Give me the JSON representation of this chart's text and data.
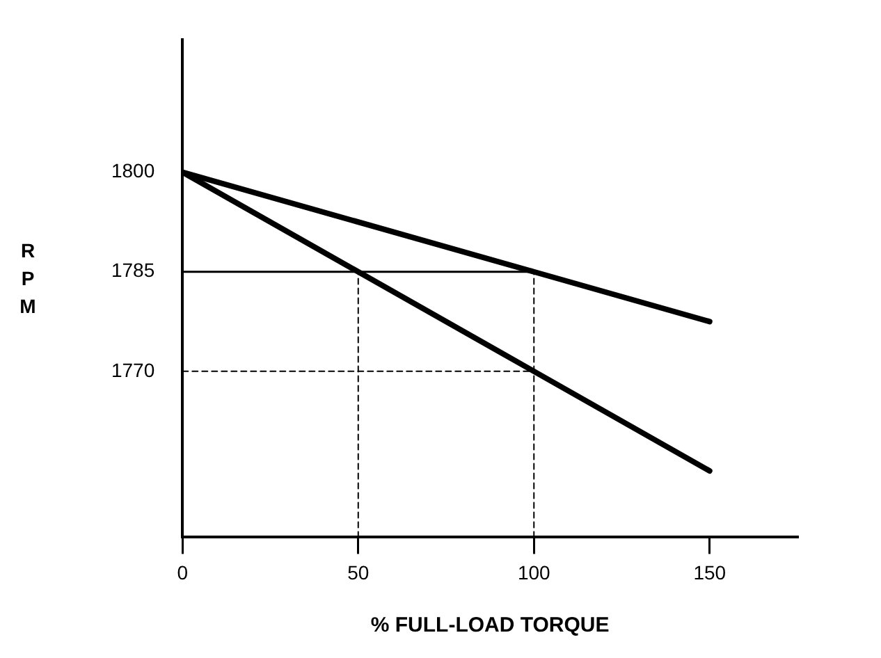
{
  "chart_data": {
    "type": "line",
    "xlabel": "% FULL-LOAD TORQUE",
    "ylabel": "RPM",
    "series": [
      {
        "color": "#000000",
        "x": [
          0,
          100,
          150
        ],
        "values": [
          1800,
          1785,
          1777.5
        ]
      },
      {
        "color": "#000000",
        "x": [
          0,
          50,
          100,
          150
        ],
        "values": [
          1800,
          1785,
          1770,
          1755
        ]
      },
      {
        "color": "#000000",
        "x": [
          0,
          100
        ],
        "values": [
          1785,
          1785
        ],
        "line_style": "solid"
      },
      {
        "color": "#000000",
        "x": [
          0,
          100
        ],
        "values": [
          1770,
          1770
        ],
        "line_style": "dashed"
      },
      {
        "color": "#000000",
        "x": [
          50,
          50
        ],
        "values": [
          1745,
          1785
        ],
        "line_style": "dashed"
      },
      {
        "color": "#000000",
        "x": [
          100,
          100
        ],
        "values": [
          1745,
          1785
        ],
        "line_style": "dashed"
      }
    ],
    "xlim": [
      0,
      175
    ],
    "xticks": [
      0,
      50,
      100,
      150
    ],
    "ylim": [
      1745,
      1820
    ],
    "yticks": [
      1800,
      1785,
      1770
    ],
    "grid": false,
    "legend": false,
    "marker": "none"
  }
}
